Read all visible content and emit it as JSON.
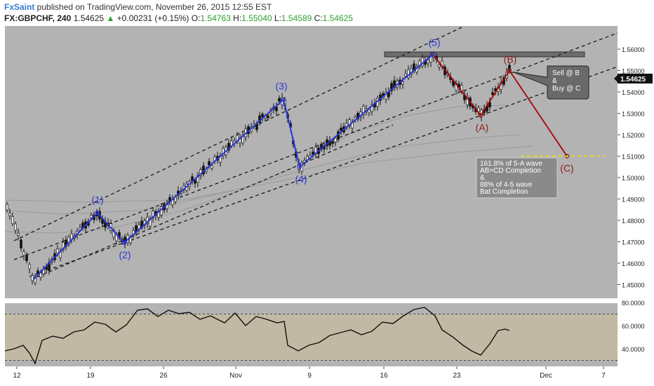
{
  "header": {
    "brand": "FxSaint",
    "published": " published on TradingView.com, November 26, 2015 12:55 EST"
  },
  "quote": {
    "symbol": "FX:GBPCHF, 240",
    "last": "1.54625",
    "change": "+0.00231 (+0.15%)",
    "open_label": "O:",
    "open": "1.54763",
    "high_label": "H:",
    "high": "1.55040",
    "low_label": "L:",
    "low": "1.54589",
    "close_label": "C:",
    "close": "1.54625",
    "up_color": "#2e9e2e"
  },
  "chart_data": {
    "type": "candlestick",
    "price_axis": {
      "ylim": [
        1.4425,
        1.5675
      ],
      "ticks": [
        "1.45000",
        "1.46000",
        "1.47000",
        "1.48000",
        "1.49000",
        "1.50000",
        "1.51000",
        "1.52000",
        "1.53000",
        "1.54000",
        "1.55000",
        "1.56000"
      ],
      "last_price_label": "1.54625"
    },
    "x_axis": {
      "date_ticks": [
        "12",
        "19",
        "26",
        "Nov",
        "9",
        "16",
        "23",
        "Dec",
        "7"
      ]
    },
    "waves": [
      {
        "label": "(1)",
        "price": 1.4835,
        "color": "#2a35d6"
      },
      {
        "label": "(2)",
        "price": 1.4695,
        "color": "#2a35d6"
      },
      {
        "label": "(3)",
        "price": 1.5365,
        "color": "#2a35d6"
      },
      {
        "label": "(4)",
        "price": 1.505,
        "color": "#2a35d6"
      },
      {
        "label": "(5)",
        "price": 1.5575,
        "color": "#2a35d6"
      },
      {
        "label": "(A)",
        "price": 1.529,
        "color": "#8b1a1a"
      },
      {
        "label": "(B)",
        "price": 1.55,
        "color": "#8b1a1a"
      },
      {
        "label": "(C)",
        "price": 1.51,
        "color": "#8b1a1a"
      }
    ],
    "annotations": {
      "trade_callout": [
        "Sell @ B",
        "&",
        "Buy @ C"
      ],
      "target_box": [
        "161.8% of 5-A wave",
        "AB=CD Completion",
        "&",
        "88% of 4-5 wave",
        "Bat Completion"
      ],
      "target_level": 1.51,
      "resistance_level": 1.557
    },
    "rsi": {
      "ticks": [
        "80.0000",
        "60.0000",
        "40.0000"
      ],
      "upper_band": 70,
      "lower_band": 30
    },
    "colors": {
      "panel_bg": "#b3b3b3",
      "impulse": "#2a35d6",
      "correction": "#aa0000",
      "candle": "#111111",
      "target_line": "#f0e000",
      "rsi_band": "#c2b9a4"
    }
  }
}
